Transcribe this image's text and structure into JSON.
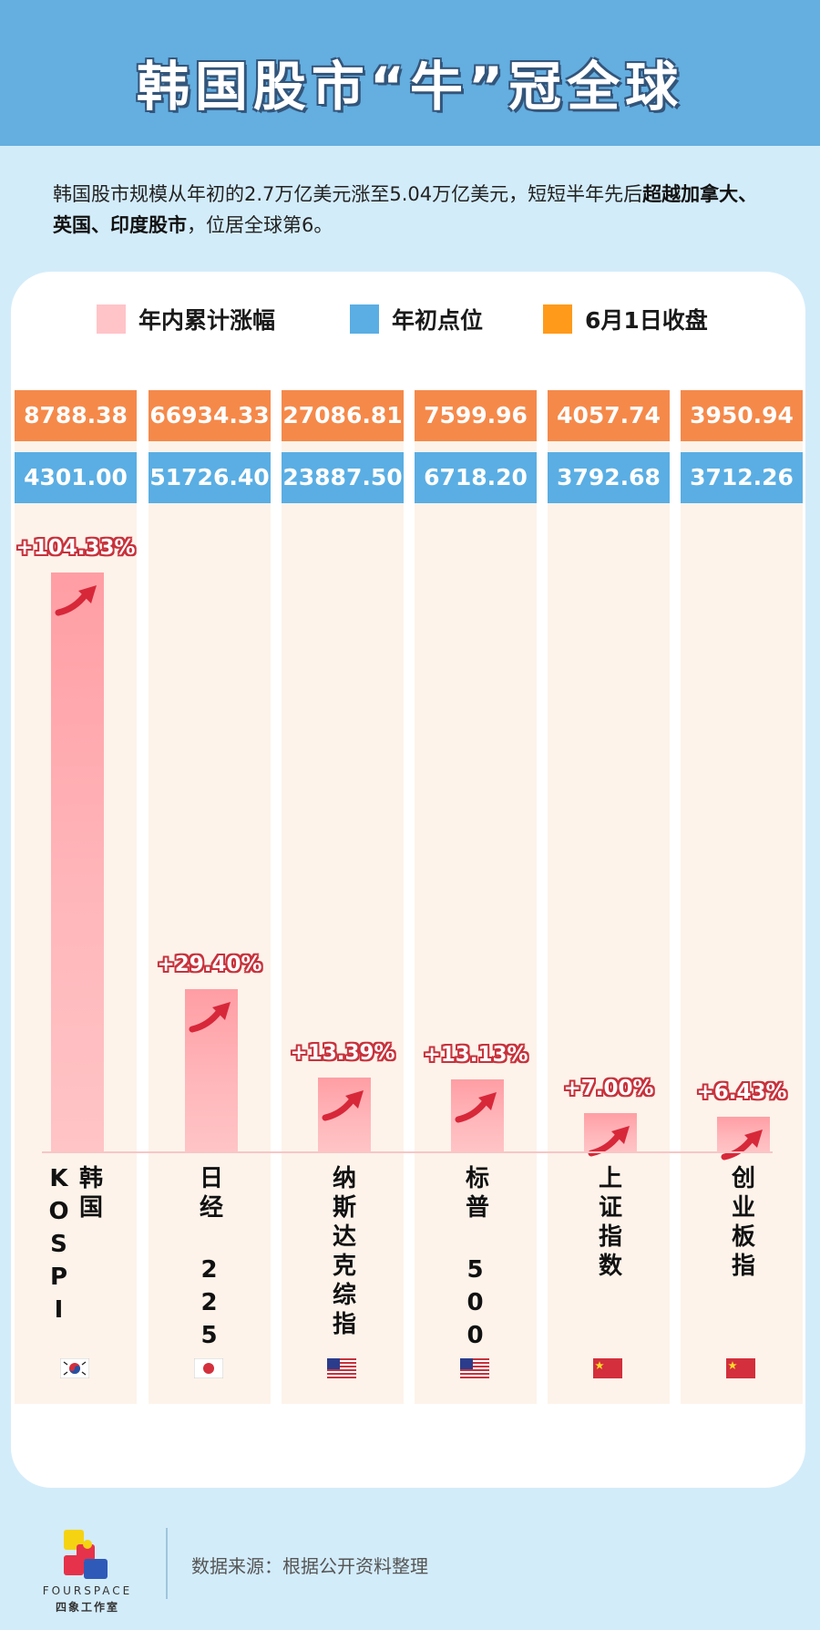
{
  "title": "韩国股市“牛”冠全球",
  "intro": {
    "part1": "韩国股市规模从年初的2.7万亿美元涨至5.04万亿美元，短短半年先后",
    "bold": "超越加拿大、英国、印度股市",
    "part2": "，位居全球第6。"
  },
  "legend": [
    {
      "label": "年内累计涨幅",
      "color": "#ffc4c8"
    },
    {
      "label": "年初点位",
      "color": "#5aaee3"
    },
    {
      "label": "6月1日收盘",
      "color": "#ff9a1a"
    }
  ],
  "chart_data": {
    "type": "bar",
    "categories": [
      "韩国 KOSPI",
      "日经 225",
      "纳斯达克综指",
      "标普 500",
      "上证指数",
      "创业板指"
    ],
    "series": [
      {
        "name": "年内累计涨幅",
        "values": [
          104.33,
          29.4,
          13.39,
          13.13,
          7.0,
          6.43
        ],
        "labels": [
          "+104.33%",
          "+29.40%",
          "+13.39%",
          "+13.13%",
          "+7.00%",
          "+6.43%"
        ]
      },
      {
        "name": "年初点位",
        "values": [
          4301.0,
          51726.4,
          23887.5,
          6718.2,
          3792.68,
          3712.26
        ],
        "labels": [
          "4301.00",
          "51726.40",
          "23887.50",
          "6718.20",
          "3792.68",
          "3712.26"
        ]
      },
      {
        "name": "6月1日收盘",
        "values": [
          8788.38,
          66934.33,
          27086.81,
          7599.96,
          4057.74,
          3950.94
        ],
        "labels": [
          "8788.38",
          "66934.33",
          "27086.81",
          "7599.96",
          "4057.74",
          "3950.94"
        ]
      }
    ],
    "flags": [
      "kr",
      "jp",
      "us",
      "us",
      "cn",
      "cn"
    ]
  },
  "footer": {
    "source": "数据来源：根据公开资料整理",
    "logo_en": "FOURSPACE",
    "logo_cn": "四象工作室"
  }
}
